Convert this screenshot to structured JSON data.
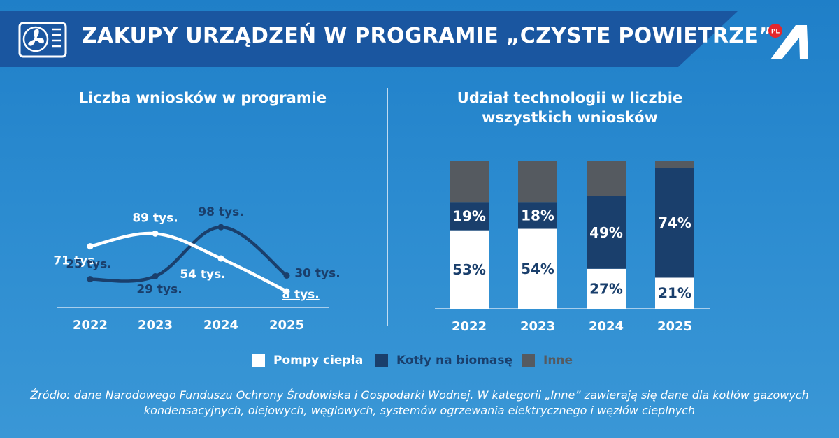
{
  "header": {
    "title": "ZAKUPY URZĄDZEŃ W PROGRAMIE „CZYSTE POWIETRZE”",
    "icon": "air-conditioner-icon",
    "logo_badge": "PL",
    "logo_icon": "brand-a-logo-icon"
  },
  "colors": {
    "pompy": "#ffffff",
    "kotly": "#1a3f6c",
    "inne": "#555a60",
    "banner": "#1a56a0"
  },
  "chart_data": [
    {
      "type": "line",
      "title": "Liczba wniosków w programie",
      "categories": [
        "2022",
        "2023",
        "2024",
        "2025"
      ],
      "series": [
        {
          "values": [
            71,
            89,
            54,
            8
          ],
          "labels": [
            "71 tys.",
            "89 tys.",
            "54 tys.",
            "8 tys."
          ],
          "color": "#ffffff"
        },
        {
          "values": [
            25,
            29,
            98,
            30
          ],
          "labels": [
            "25 tys.",
            "29 tys.",
            "98 tys.",
            "30 tys."
          ],
          "color": "#1a3f6c"
        }
      ],
      "ylim": [
        0,
        110
      ]
    },
    {
      "type": "bar",
      "stacked": true,
      "title": "Udział technologii w liczbie wszystkich wniosków",
      "categories": [
        "2022",
        "2023",
        "2024",
        "2025"
      ],
      "series": [
        {
          "name": "Pompy ciepła",
          "values": [
            53,
            54,
            27,
            21
          ],
          "labels": [
            "53%",
            "54%",
            "27%",
            "21%"
          ],
          "color": "#ffffff"
        },
        {
          "name": "Kotły na biomasę",
          "values": [
            19,
            18,
            49,
            74
          ],
          "labels": [
            "19%",
            "18%",
            "49%",
            "74%"
          ],
          "color": "#1a3f6c"
        },
        {
          "name": "Inne",
          "values": [
            28,
            28,
            24,
            5
          ],
          "color": "#555a60"
        }
      ],
      "ylim": [
        0,
        100
      ],
      "legend": "bottom"
    }
  ],
  "legend": [
    {
      "label": "Pompy ciepła",
      "color": "#ffffff"
    },
    {
      "label": "Kotły na biomasę",
      "color": "#1a3f6c"
    },
    {
      "label": "Inne",
      "color": "#555a60"
    }
  ],
  "source": "Źródło: dane Narodowego Funduszu Ochrony Środowiska i Gospodarki Wodnej. W kategorii „Inne” zawierają się dane dla kotłów gazowych kondensacyjnych, olejowych, węglowych, systemów ogrzewania elektrycznego i węzłów cieplnych"
}
